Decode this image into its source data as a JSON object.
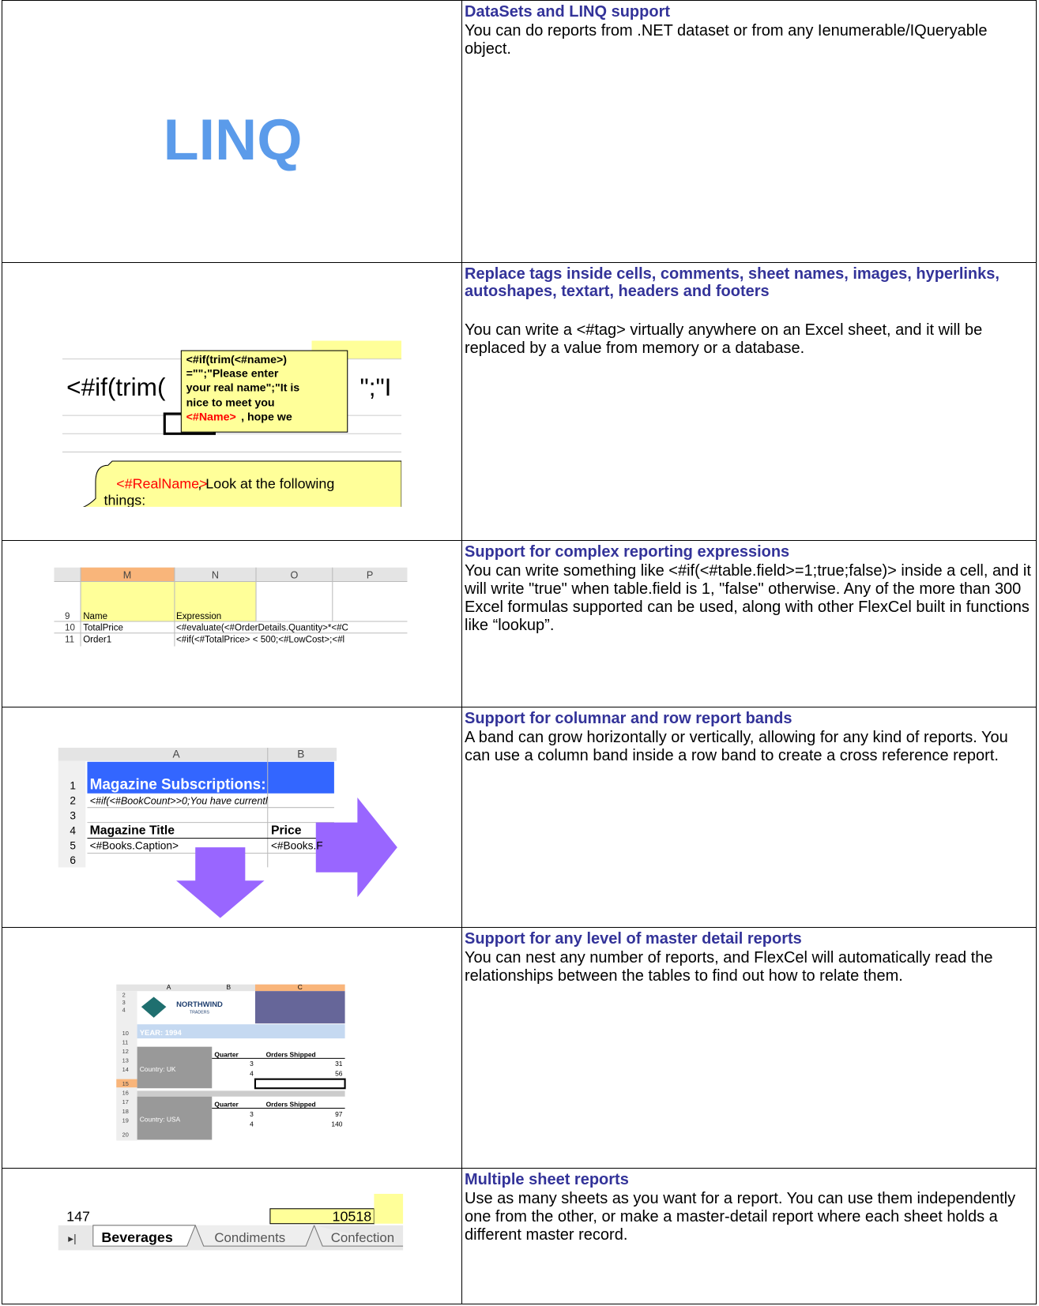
{
  "rows": [
    {
      "title": "DataSets and LINQ support",
      "description": "You can do reports from .NET dataset or from any Ienumerable/IQueryable object.",
      "image": [
        "LINQ"
      ]
    },
    {
      "title": "Replace tags inside cells, comments, sheet names, images, hyperlinks, autoshapes, textart, headers and footers",
      "description": "You can write a <#tag> virtually anywhere on an Excel sheet, and it will be replaced by a value from memory or a database.",
      "image": [
        "<#if(trim(",
        "\";\"I",
        "<#if(trim(<#name>)",
        "=\"\";\"Please enter",
        "your real name\";\"It is",
        "nice to meet you",
        "<#Name>",
        ", hope we",
        "<#RealName>",
        ", Look at the following",
        "things:"
      ]
    },
    {
      "title": "Support for complex reporting expressions",
      "description": "You can write something like <#if(<#table.field>=1;true;false)> inside a cell, and it will write \"true\" when table.field is 1, \"false\" otherwise. Any of the more than 300 Excel formulas supported can be used, along with other FlexCel built in functions like “lookup”.",
      "image": [
        "M",
        "N",
        "O",
        "P",
        "9",
        "Name",
        "Expression",
        "10",
        "TotalPrice",
        "<#evaluate(<#OrderDetails.Quantity>*<#C",
        "11",
        "Order1",
        "<#if(<#TotalPrice> < 500;<#LowCost>;<#l"
      ]
    },
    {
      "title": "Support for columnar and row report bands",
      "description": "A band can grow horizontally or vertically, allowing for any kind of reports. You can use a column band inside a row band to create a cross reference report.",
      "image": [
        "A",
        "B",
        "1",
        "Magazine Subscriptions:",
        "2",
        "<#if(<#BookCount>>0;You have currentl",
        "3",
        "4",
        "Magazine Title",
        "Price",
        "5",
        "<#Books.Caption>",
        "<#Books.F",
        "6"
      ]
    },
    {
      "title": "Support for any level of master detail reports",
      "description": "You can nest any number of reports, and FlexCel will automatically read the relationships between the tables to find out how to relate them.",
      "image": [
        "A",
        "B",
        "C",
        "NORTHWIND",
        "TRADERS",
        "YEAR: 1994",
        "Quarter",
        "Orders Shipped",
        "Country: UK",
        "3",
        "31",
        "4",
        "56",
        "Quarter",
        "Orders Shipped",
        "Country: USA",
        "3",
        "97",
        "4",
        "140",
        "2",
        "3",
        "4",
        "10",
        "11",
        "12",
        "13",
        "14",
        "15",
        "16",
        "17",
        "18",
        "19",
        "20"
      ]
    },
    {
      "title": "Multiple sheet reports",
      "description": "Use as many sheets as you want for a report. You can use them independently one from the other, or make a master-detail report where each sheet holds a different master record.",
      "image": [
        "147",
        "10518",
        "Beverages",
        "Condiments",
        "Confection"
      ]
    }
  ]
}
